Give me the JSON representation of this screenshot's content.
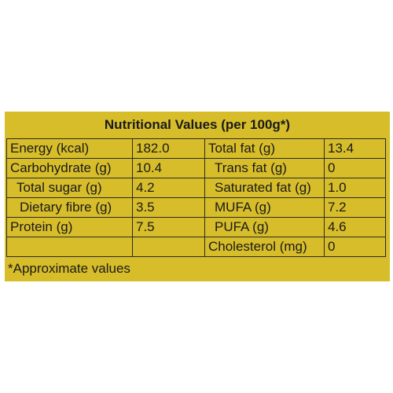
{
  "title": "Nutritional Values (per 100g*)",
  "rows": [
    {
      "left_label": "Energy (kcal)",
      "left_value": "182.0",
      "right_label": "Total fat (g)",
      "right_value": "13.4"
    },
    {
      "left_label": "Carbohydrate (g)",
      "left_value": "10.4",
      "right_label": "Trans fat (g)",
      "right_value": "0"
    },
    {
      "left_label": "Total sugar (g)",
      "left_value": "4.2",
      "right_label": "Saturated fat (g)",
      "right_value": "1.0"
    },
    {
      "left_label": "Dietary fibre (g)",
      "left_value": "3.5",
      "right_label": "MUFA (g)",
      "right_value": "7.2"
    },
    {
      "left_label": "Protein (g)",
      "left_value": "7.5",
      "right_label": "PUFA (g)",
      "right_value": "4.6"
    },
    {
      "left_label": "",
      "left_value": "",
      "right_label": "Cholesterol (mg)",
      "right_value": "0"
    }
  ],
  "footnote": "*Approximate values",
  "colors": {
    "panel": "#d7bd2a",
    "text": "#1a1a1a"
  }
}
